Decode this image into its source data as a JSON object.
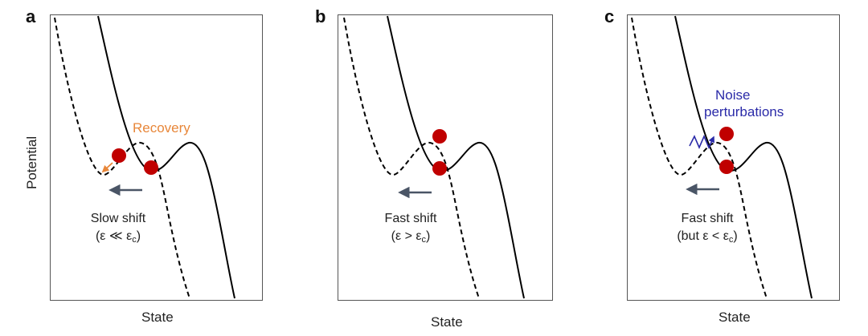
{
  "panels": [
    {
      "letter": "a",
      "caption_line1": "Slow shift",
      "caption_line2_prefix": "(ε ≪ ε",
      "caption_line2_sub": "c",
      "caption_line2_suffix": ")",
      "annotation": "Recovery",
      "annotation_color": "#e8873a"
    },
    {
      "letter": "b",
      "caption_line1": "Fast shift",
      "caption_line2_prefix": "(ε > ε",
      "caption_line2_sub": "c",
      "caption_line2_suffix": ")"
    },
    {
      "letter": "c",
      "caption_line1": "Fast shift",
      "caption_line2_prefix": "(but ε < ε",
      "caption_line2_sub": "c",
      "caption_line2_suffix": ")",
      "annotation_line1": "Noise",
      "annotation_line2": "perturbations",
      "annotation_color": "#2a2aa8"
    }
  ],
  "axes": {
    "xlabel": "State",
    "ylabel": "Potential"
  },
  "colors": {
    "ball": "#c00000",
    "curve": "#000000",
    "shift_arrow": "#4a5566",
    "recovery_arrow": "#e8873a",
    "noise_arrow": "#2a2aa8"
  }
}
